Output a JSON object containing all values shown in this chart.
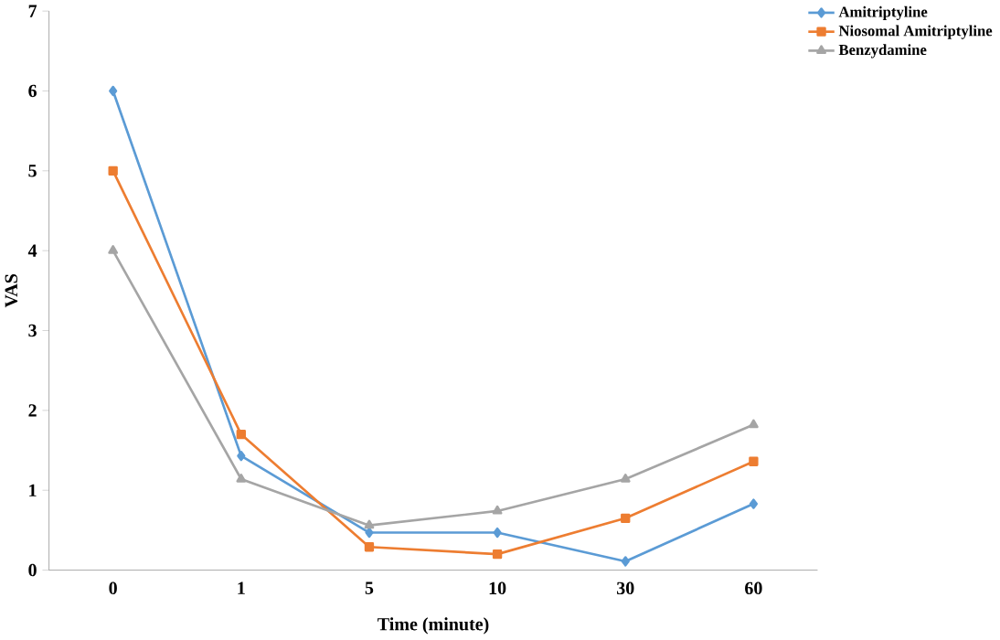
{
  "chart_data": {
    "type": "line",
    "xlabel": "Time (minute)",
    "ylabel": "VAS",
    "categories": [
      "0",
      "1",
      "5",
      "10",
      "30",
      "60"
    ],
    "series": [
      {
        "name": "Amitriptyline",
        "color": "#5b9bd5",
        "marker": "diamond",
        "values": [
          6,
          1.43,
          0.47,
          0.47,
          0.11,
          0.83
        ]
      },
      {
        "name": "Niosomal Amitriptyline",
        "color": "#ed7d31",
        "marker": "square",
        "values": [
          5,
          1.7,
          0.29,
          0.2,
          0.65,
          1.36
        ]
      },
      {
        "name": "Benzydamine",
        "color": "#a5a5a5",
        "marker": "triangle",
        "values": [
          4,
          1.14,
          0.56,
          0.74,
          1.14,
          1.82
        ]
      }
    ],
    "ylim": [
      0,
      7
    ],
    "yticks": [
      0,
      1,
      2,
      3,
      4,
      5,
      6,
      7
    ],
    "grid": false,
    "legend": "top right"
  }
}
